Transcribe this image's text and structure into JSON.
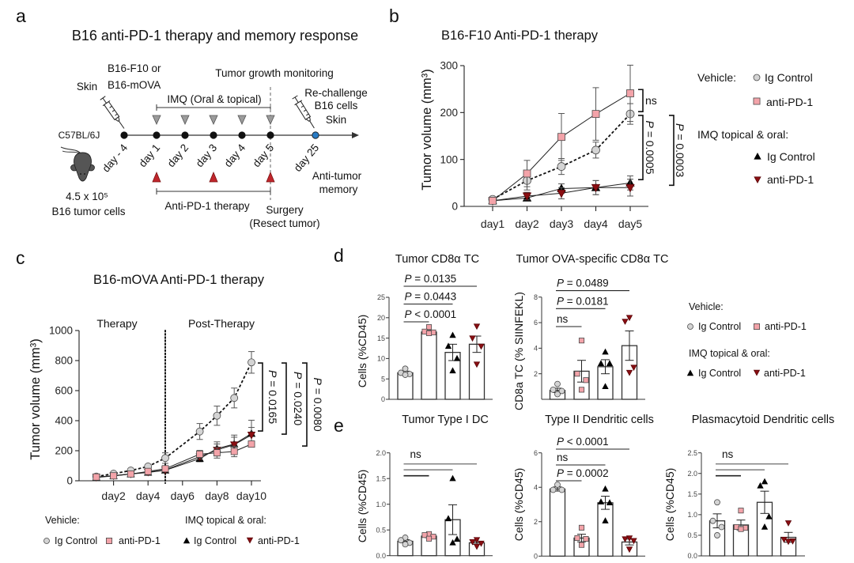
{
  "panel_labels": {
    "a": "a",
    "b": "b",
    "c": "c",
    "d": "d",
    "e": "e"
  },
  "panel_a": {
    "title": "B16 anti-PD-1 therapy and memory response",
    "strain": "C57BL/6J",
    "cells_count": "4.5 x 10⁵",
    "cells_label": "B16 tumor cells",
    "injection_site": "Skin",
    "tumor_lines": [
      "B16-F10 or",
      "B16-mOVA"
    ],
    "monitoring": "Tumor growth monitoring",
    "imq_label": "IMQ (Oral & topical)",
    "rechallenge_lines": [
      "Re-challenge",
      "B16 cells",
      "Skin"
    ],
    "timepoints": [
      {
        "label": "day - 4",
        "color": "#111111"
      },
      {
        "label": "day 1",
        "color": "#111111"
      },
      {
        "label": "day 2",
        "color": "#111111"
      },
      {
        "label": "day 3",
        "color": "#111111"
      },
      {
        "label": "day 4",
        "color": "#111111"
      },
      {
        "label": "day 5",
        "color": "#111111"
      },
      {
        "label": "day 25",
        "color": "#2a7bc4"
      }
    ],
    "imq_dose_days": [
      "day 1",
      "day 2",
      "day 3",
      "day 4",
      "day 5"
    ],
    "antipd1_dose_days": [
      "day 1",
      "day 3",
      "day 5"
    ],
    "antipd1_label": "Anti-PD-1 therapy",
    "surgery_lines": [
      "Surgery",
      "(Resect tumor)"
    ],
    "memory_lines": [
      "Anti-tumor",
      "memory"
    ],
    "colors": {
      "imq_dose": "#9b9b9b",
      "antipd1_dose": "#c0262c"
    }
  },
  "legend": {
    "vehicle_heading": "Vehicle:",
    "imq_heading": "IMQ topical & oral:",
    "groups": [
      {
        "treatment": "Vehicle",
        "label": "Ig Control",
        "marker": "circle",
        "fill": "#d4d4d4",
        "stroke": "#4a4a4a"
      },
      {
        "treatment": "Vehicle",
        "label": "anti-PD-1",
        "marker": "square",
        "fill": "#f3a3a9",
        "stroke": "#4a4a4a"
      },
      {
        "treatment": "IMQ topical & oral",
        "label": "Ig Control",
        "marker": "triangle-up",
        "fill": "#000000",
        "stroke": "#000000"
      },
      {
        "treatment": "IMQ topical & oral",
        "label": "anti-PD-1",
        "marker": "triangle-down",
        "fill": "#8a0e12",
        "stroke": "#5a0508"
      }
    ]
  },
  "chart_data": [
    {
      "id": "b",
      "type": "line",
      "title": "B16-F10 Anti-PD-1 therapy",
      "xlabel": "",
      "ylabel": "Tumor volume (mm³)",
      "x": [
        "day1",
        "day2",
        "day3",
        "day4",
        "day5"
      ],
      "ylim": [
        0,
        300
      ],
      "yticks": [
        0,
        100,
        200,
        300
      ],
      "yticklabels": [
        "0",
        "100",
        "200",
        "300"
      ],
      "grid": false,
      "legend": "right",
      "series": [
        {
          "name": "Vehicle Ig Control",
          "group": 0,
          "line": "dashed",
          "values": [
            15,
            55,
            85,
            120,
            197
          ],
          "errors": [
            3,
            20,
            17,
            17,
            22
          ]
        },
        {
          "name": "Vehicle anti-PD-1",
          "group": 1,
          "line": "solid",
          "values": [
            12,
            70,
            148,
            197,
            241
          ],
          "errors": [
            3,
            28,
            50,
            56,
            60
          ]
        },
        {
          "name": "IMQ Ig Control",
          "group": 2,
          "line": "solid",
          "values": [
            12,
            18,
            38,
            40,
            50
          ],
          "errors": [
            2,
            6,
            10,
            15,
            15
          ]
        },
        {
          "name": "IMQ anti-PD-1",
          "group": 3,
          "line": "solid",
          "values": [
            12,
            22,
            28,
            40,
            40
          ],
          "errors": [
            2,
            8,
            12,
            15,
            18
          ]
        }
      ],
      "comparisons": [
        {
          "y_range": [
            202,
            249
          ],
          "label": {
            "symbol": "",
            "text": "ns"
          }
        },
        {
          "y_range": [
            57,
            194
          ],
          "label": {
            "symbol": "P",
            "text": " = 0.0005"
          }
        },
        {
          "y_range": [
            45,
            194
          ],
          "label": {
            "symbol": "P",
            "text": " = 0.0003"
          }
        }
      ]
    },
    {
      "id": "c",
      "type": "line",
      "title": "B16-mOVA Anti-PD-1 therapy",
      "xlabel": "",
      "ylabel": "Tumor volume (mm³)",
      "x": [
        1,
        2,
        3,
        4,
        5,
        7,
        8,
        9,
        10
      ],
      "xlim": [
        0,
        10.5
      ],
      "xticks": [
        2,
        4,
        6,
        8,
        10
      ],
      "xticklabels": [
        "day2",
        "day4",
        "day6",
        "day8",
        "day10"
      ],
      "ylim": [
        0,
        1000
      ],
      "yticks": [
        0,
        200,
        400,
        600,
        800,
        1000
      ],
      "yticklabels": [
        "0",
        "200",
        "400",
        "600",
        "800",
        "1000"
      ],
      "grid": false,
      "legend": "bottom",
      "phase_divider_x": 5,
      "phases": [
        "Therapy",
        "Post-Therapy"
      ],
      "series": [
        {
          "name": "Vehicle Ig Control",
          "group": 0,
          "line": "dashed",
          "values": [
            28,
            47,
            68,
            95,
            151,
            328,
            433,
            551,
            788
          ],
          "errors": [
            5,
            6,
            8,
            10,
            35,
            53,
            64,
            66,
            72
          ]
        },
        {
          "name": "Vehicle anti-PD-1",
          "group": 1,
          "line": "solid",
          "values": [
            25,
            33,
            45,
            62,
            80,
            177,
            186,
            195,
            244
          ],
          "errors": [
            5,
            5,
            6,
            8,
            15,
            25,
            35,
            35,
            20
          ]
        },
        {
          "name": "IMQ Ig Control",
          "group": 2,
          "line": "solid",
          "values": [
            22,
            32,
            45,
            55,
            70,
            147,
            214,
            244,
            314
          ],
          "errors": [
            4,
            5,
            6,
            8,
            12,
            20,
            45,
            60,
            89
          ]
        },
        {
          "name": "IMQ anti-PD-1",
          "group": 3,
          "line": "solid",
          "values": [
            24,
            34,
            46,
            58,
            72,
            160,
            205,
            240,
            305
          ],
          "errors": [
            4,
            5,
            6,
            8,
            12,
            20,
            40,
            50,
            50
          ]
        }
      ],
      "comparisons": [
        {
          "y_range": [
            331,
            784
          ],
          "label": {
            "symbol": "P",
            "text": " = 0.0165"
          }
        },
        {
          "y_range": [
            310,
            784
          ],
          "label": {
            "symbol": "P",
            "text": " = 0.0240"
          }
        },
        {
          "y_range": [
            231,
            784
          ],
          "label": {
            "symbol": "P",
            "text": " = 0.0080"
          }
        }
      ]
    },
    {
      "id": "d1",
      "type": "bar",
      "title": "Tumor CD8α TC",
      "ylabel": "Cells (%CD45)",
      "categories": [
        "Vehicle Ig Control",
        "Vehicle anti-PD-1",
        "IMQ Ig Control",
        "IMQ anti-PD-1"
      ],
      "ylim": [
        0,
        25
      ],
      "yticks": [
        0,
        5,
        10,
        15,
        20,
        25
      ],
      "yticklabels": [
        "0",
        "5",
        "10",
        "15",
        "20",
        "25"
      ],
      "values": [
        6.5,
        16.5,
        11.5,
        13.5
      ],
      "sem": [
        0.4,
        0.4,
        2.0,
        2.0
      ],
      "points": [
        [
          7.5,
          6.5,
          6.2,
          6.0
        ],
        [
          17.7,
          16.6,
          16.4,
          16.2
        ],
        [
          15.7,
          13.0,
          10.0,
          7.0
        ],
        [
          17.9,
          15.0,
          13.0,
          8.6
        ]
      ],
      "comparisons": [
        {
          "groups": [
            0,
            1
          ],
          "label": {
            "symbol": "P",
            "text": " < 0.0001"
          }
        },
        {
          "groups": [
            0,
            2
          ],
          "label": {
            "symbol": "P",
            "text": " = 0.0443"
          }
        },
        {
          "groups": [
            0,
            3
          ],
          "label": {
            "symbol": "P",
            "text": " = 0.0135"
          }
        }
      ]
    },
    {
      "id": "d2",
      "type": "bar",
      "title": "Tumor OVA-specific CD8α TC",
      "ylabel": "CD8a TC (% SIINFEKL)",
      "categories": [
        "Vehicle Ig Control",
        "Vehicle anti-PD-1",
        "IMQ Ig Control",
        "IMQ anti-PD-1"
      ],
      "ylim": [
        0,
        8
      ],
      "yticks": [
        2,
        4,
        6,
        8
      ],
      "yticklabels": [
        "2",
        "4",
        "6",
        "8"
      ],
      "values": [
        0.7,
        2.2,
        2.55,
        4.2
      ],
      "sem": [
        0.17,
        0.85,
        0.55,
        1.15
      ],
      "points": [
        [
          1.2,
          0.75,
          0.65,
          0.4
        ],
        [
          4.6,
          2.0,
          1.5,
          0.75
        ],
        [
          3.7,
          2.8,
          2.8,
          1.0
        ],
        [
          6.4,
          6.1,
          2.5,
          2.1
        ]
      ],
      "comparisons": [
        {
          "groups": [
            0,
            1
          ],
          "label": {
            "symbol": "",
            "text": "ns"
          }
        },
        {
          "groups": [
            0,
            2
          ],
          "label": {
            "symbol": "P",
            "text": " = 0.0181"
          }
        },
        {
          "groups": [
            0,
            3
          ],
          "label": {
            "symbol": "P",
            "text": " = 0.0489"
          }
        }
      ]
    },
    {
      "id": "e1",
      "type": "bar",
      "title": "Tumor Type I DC",
      "ylabel": "Cells (%CD45)",
      "categories": [
        "Vehicle Ig Control",
        "Vehicle anti-PD-1",
        "IMQ Ig Control",
        "IMQ anti-PD-1"
      ],
      "ylim": [
        0,
        2.0
      ],
      "yticks": [
        0,
        0.5,
        1.0,
        1.5,
        2.0
      ],
      "yticklabels": [
        "0.0",
        "0.5",
        "1.0",
        "1.5",
        "2.0"
      ],
      "values": [
        0.28,
        0.38,
        0.7,
        0.25
      ],
      "sem": [
        0.03,
        0.03,
        0.29,
        0.03
      ],
      "points": [
        [
          0.35,
          0.3,
          0.25,
          0.22
        ],
        [
          0.42,
          0.4,
          0.37,
          0.33
        ],
        [
          1.5,
          0.72,
          0.32,
          0.25
        ],
        [
          0.31,
          0.27,
          0.24,
          0.18
        ]
      ],
      "comparisons": [
        {
          "groups": [
            0,
            1
          ]
        },
        {
          "groups": [
            0,
            2
          ]
        },
        {
          "groups": [
            0,
            3
          ]
        }
      ],
      "shared_label": {
        "symbol": "",
        "text": "ns"
      }
    },
    {
      "id": "e2",
      "type": "bar",
      "title": "Type II Dendritic cells",
      "ylabel": "Cells (%CD45)",
      "categories": [
        "Vehicle Ig Control",
        "Vehicle anti-PD-1",
        "IMQ Ig Control",
        "IMQ anti-PD-1"
      ],
      "ylim": [
        0,
        6
      ],
      "yticks": [
        0,
        2,
        4,
        6
      ],
      "yticklabels": [
        "0",
        "2",
        "4",
        "6"
      ],
      "values": [
        3.9,
        1.05,
        3.1,
        0.82
      ],
      "sem": [
        0.12,
        0.22,
        0.38,
        0.17
      ],
      "points": [
        [
          4.15,
          3.85,
          3.85
        ],
        [
          1.65,
          1.05,
          1.0,
          0.65
        ],
        [
          3.9,
          3.15,
          3.1,
          2.05
        ],
        [
          1.05,
          1.0,
          0.9,
          0.4
        ]
      ],
      "comparisons": [
        {
          "groups": [
            0,
            1
          ],
          "label": {
            "symbol": "P",
            "text": " = 0.0002"
          }
        },
        {
          "groups": [
            0,
            2
          ],
          "label": {
            "symbol": "",
            "text": "ns"
          }
        },
        {
          "groups": [
            0,
            3
          ],
          "label": {
            "symbol": "P",
            "text": " < 0.0001"
          }
        }
      ]
    },
    {
      "id": "e3",
      "type": "bar",
      "title": "Plasmacytoid Dendritic cells",
      "ylabel": "Cells (%CD45)",
      "categories": [
        "Vehicle Ig Control",
        "Vehicle anti-PD-1",
        "IMQ Ig Control",
        "IMQ anti-PD-1"
      ],
      "ylim": [
        0,
        2.5
      ],
      "yticks": [
        0,
        0.5,
        1.0,
        1.5,
        2.0,
        2.5
      ],
      "yticklabels": [
        "0.0",
        "0.5",
        "1.0",
        "1.5",
        "2.0",
        "2.5"
      ],
      "values": [
        0.85,
        0.75,
        1.3,
        0.45
      ],
      "sem": [
        0.17,
        0.12,
        0.27,
        0.12
      ],
      "points": [
        [
          1.3,
          0.85,
          0.7,
          0.5
        ],
        [
          1.1,
          0.7,
          0.68,
          0.65
        ],
        [
          1.8,
          1.7,
          0.95,
          0.7
        ],
        [
          0.8,
          0.4,
          0.36,
          0.35
        ]
      ],
      "comparisons": [
        {
          "groups": [
            0,
            1
          ]
        },
        {
          "groups": [
            0,
            2
          ]
        },
        {
          "groups": [
            0,
            3
          ]
        }
      ],
      "shared_label": {
        "symbol": "",
        "text": "ns"
      }
    }
  ]
}
